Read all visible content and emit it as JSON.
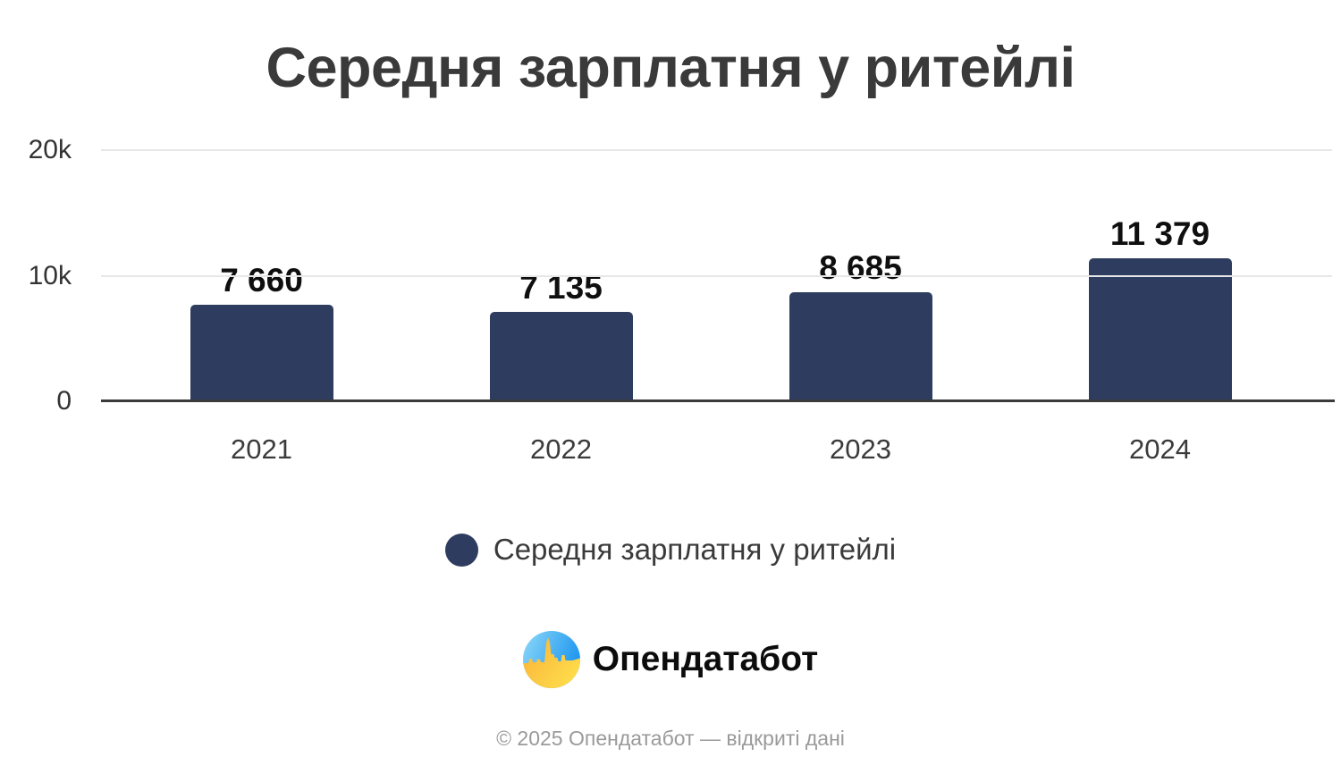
{
  "title": "Середня зарплатня у ритейлі",
  "chart_data": {
    "type": "bar",
    "title": "Середня зарплатня у ритейлі",
    "categories": [
      "2021",
      "2022",
      "2023",
      "2024"
    ],
    "values": [
      7660,
      7135,
      8685,
      11379
    ],
    "value_labels": [
      "7 660",
      "7 135",
      "8 685",
      "11 379"
    ],
    "xlabel": "",
    "ylabel": "",
    "ylim": [
      0,
      20000
    ],
    "yticks": [
      {
        "value": 0,
        "label": "0"
      },
      {
        "value": 10000,
        "label": "10k"
      },
      {
        "value": 20000,
        "label": "20k"
      }
    ],
    "grid": true,
    "bar_color": "#2e3d5f",
    "legend_position": "bottom"
  },
  "legend": {
    "label": "Середня зарплатня у ритейлі",
    "marker_color": "#2e3d5f"
  },
  "branding": {
    "logo_text": "Опендатабот"
  },
  "footer": {
    "copyright": "© 2025 Опендатабот — відкриті дані"
  },
  "colors": {
    "bar": "#2e3d5f",
    "title_text": "#3a3a3a",
    "value_text": "#0f0f0f",
    "axis": "#3a3a3a",
    "grid": "#e7e7e7",
    "footer_text": "#9a9a9a",
    "logo_blue_light": "#8ed9f8",
    "logo_blue": "#1e96ef",
    "logo_yellow_light": "#ffe14d",
    "logo_gold": "#f9b43a"
  }
}
